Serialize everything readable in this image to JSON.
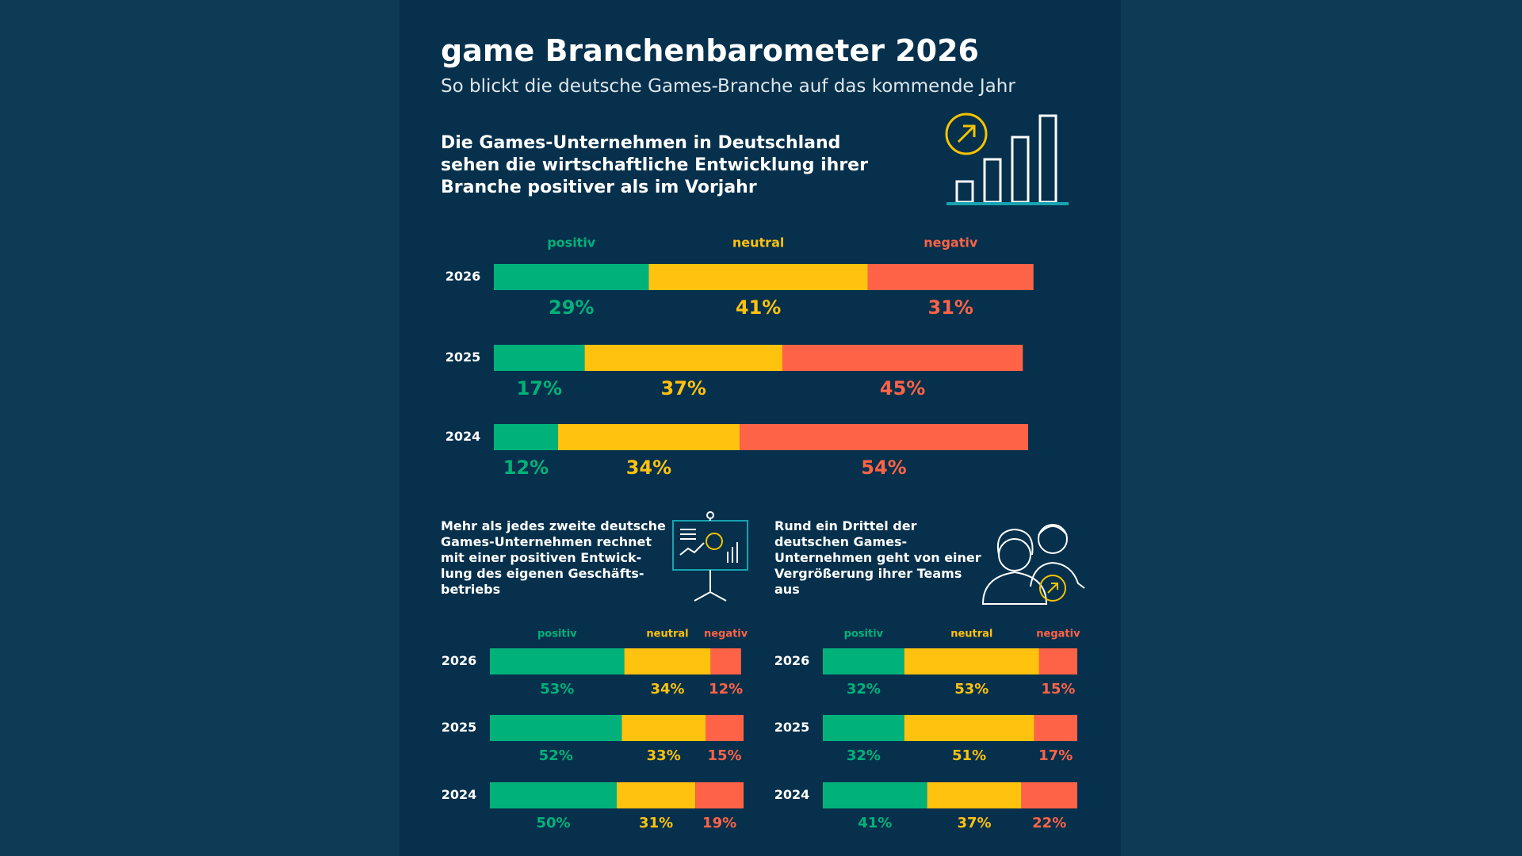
{
  "header": {
    "title": "game Branchenbarometer 2026",
    "subtitle": "So blickt die deutsche Games-Branche auf das kommende Jahr"
  },
  "chart_data": [
    {
      "type": "stacked_bar_h",
      "title": "Die Games-Unternehmen in Deutschland sehen die wirtschaftliche Entwicklung ihrer Branche positiver als im Vorjahr",
      "categories": [
        "2026",
        "2025",
        "2024"
      ],
      "series": [
        {
          "name": "positiv",
          "color": "#00b27a",
          "values": [
            29,
            17,
            12
          ],
          "value_labels": [
            "29%",
            "17%",
            "12%"
          ]
        },
        {
          "name": "neutral",
          "color": "#ffc20e",
          "values": [
            41,
            37,
            34
          ],
          "value_labels": [
            "41%",
            "37%",
            "34%"
          ]
        },
        {
          "name": "negativ",
          "color": "#ff6347",
          "values": [
            31,
            45,
            54
          ],
          "value_labels": [
            "31%",
            "45%",
            "54%"
          ]
        }
      ]
    },
    {
      "type": "stacked_bar_h",
      "title": "Mehr als jedes zweite deutsche Games-Unternehmen rechnet mit einer positiven Entwick-lung des eigenen Geschäfts-betriebs",
      "categories": [
        "2026",
        "2025",
        "2024"
      ],
      "series": [
        {
          "name": "positiv",
          "color": "#00b27a",
          "values": [
            53,
            52,
            50
          ],
          "value_labels": [
            "53%",
            "52%",
            "50%"
          ]
        },
        {
          "name": "neutral",
          "color": "#ffc20e",
          "values": [
            34,
            33,
            31
          ],
          "value_labels": [
            "34%",
            "33%",
            "31%"
          ]
        },
        {
          "name": "negativ",
          "color": "#ff6347",
          "values": [
            12,
            15,
            19
          ],
          "value_labels": [
            "12%",
            "15%",
            "19%"
          ]
        }
      ]
    },
    {
      "type": "stacked_bar_h",
      "title": "Rund ein Drittel der deutschen Games-Unternehmen geht von einer Vergrößerung ihrer Teams aus",
      "categories": [
        "2026",
        "2025",
        "2024"
      ],
      "series": [
        {
          "name": "positiv",
          "color": "#00b27a",
          "values": [
            32,
            32,
            41
          ],
          "value_labels": [
            "32%",
            "32%",
            "41%"
          ]
        },
        {
          "name": "neutral",
          "color": "#ffc20e",
          "values": [
            53,
            51,
            37
          ],
          "value_labels": [
            "53%",
            "51%",
            "37%"
          ]
        },
        {
          "name": "negativ",
          "color": "#ff6347",
          "values": [
            15,
            17,
            22
          ],
          "value_labels": [
            "15%",
            "17%",
            "22%"
          ]
        }
      ]
    }
  ]
}
